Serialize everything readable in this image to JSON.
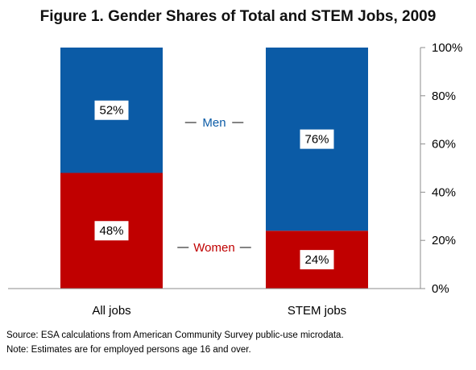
{
  "chart_data": {
    "type": "bar",
    "stacked": true,
    "percent": true,
    "title": "Figure 1. Gender Shares of Total and STEM Jobs, 2009",
    "categories": [
      "All jobs",
      "STEM jobs"
    ],
    "series": [
      {
        "name": "Women",
        "values": [
          48,
          24
        ],
        "labels": [
          "48%",
          "24%"
        ],
        "color": "#c00000"
      },
      {
        "name": "Men",
        "values": [
          52,
          76
        ],
        "labels": [
          "52%",
          "76%"
        ],
        "color": "#0b5ba6"
      }
    ],
    "ylim": [
      0,
      100
    ],
    "yaxis_position": "right",
    "yticks": [
      0,
      20,
      40,
      60,
      80,
      100
    ],
    "ytick_labels": [
      "0%",
      "20%",
      "40%",
      "60%",
      "80%",
      "100%"
    ],
    "grid": false,
    "legend": "inline-between-bars"
  },
  "notes": {
    "source": "Source:  ESA calculations from American Community Survey public-use microdata.",
    "estimates": "Note: Estimates are for employed persons age 16 and over."
  }
}
